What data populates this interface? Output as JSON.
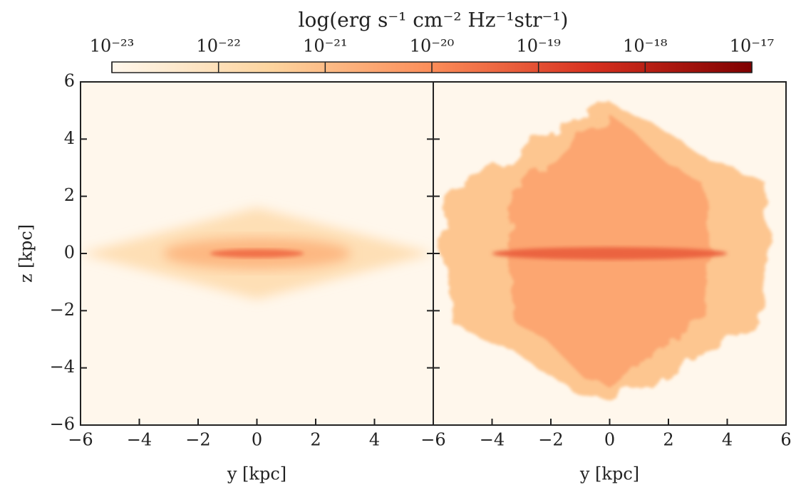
{
  "colorbar": {
    "title": "log(erg s⁻¹ cm⁻² Hz⁻¹str⁻¹)",
    "log": true,
    "clim": [
      1e-23,
      1e-17
    ],
    "ticks": [
      {
        "value": 1e-23,
        "label": "10⁻²³"
      },
      {
        "value": 1e-22,
        "label": "10⁻²²"
      },
      {
        "value": 1e-21,
        "label": "10⁻²¹"
      },
      {
        "value": 1e-20,
        "label": "10⁻²⁰"
      },
      {
        "value": 1e-19,
        "label": "10⁻¹⁹"
      },
      {
        "value": 1e-18,
        "label": "10⁻¹⁸"
      },
      {
        "value": 1e-17,
        "label": "10⁻¹⁷"
      }
    ],
    "colormap": [
      "#fff7ec",
      "#fdd49e",
      "#fc8d59",
      "#d7301f",
      "#7f0000"
    ]
  },
  "chart_data": [
    {
      "type": "image",
      "xlabel": "y [kpc]",
      "ylabel": "z [kpc]",
      "xlim": [
        -6,
        6
      ],
      "xticks": [
        {
          "value": -6,
          "label": "−6"
        },
        {
          "value": -4,
          "label": "−4"
        },
        {
          "value": -2,
          "label": "−2"
        },
        0,
        2,
        4
      ],
      "ylim": [
        -6,
        6
      ],
      "yticks": [
        {
          "value": -6,
          "label": "−6"
        },
        {
          "value": -4,
          "label": "−4"
        },
        {
          "value": -2,
          "label": "−2"
        },
        0,
        2,
        4,
        6
      ]
    },
    {
      "type": "image",
      "xlabel": "y [kpc]",
      "xlim": [
        -6,
        6
      ],
      "xticks": [
        {
          "value": -6,
          "label": "−6"
        },
        {
          "value": -4,
          "label": "−4"
        },
        {
          "value": -2,
          "label": "−2"
        },
        0,
        2,
        4,
        6
      ],
      "ylim": [
        -6,
        6
      ],
      "yticks": [
        -6,
        -4,
        -2,
        0,
        2,
        4,
        6
      ]
    }
  ]
}
